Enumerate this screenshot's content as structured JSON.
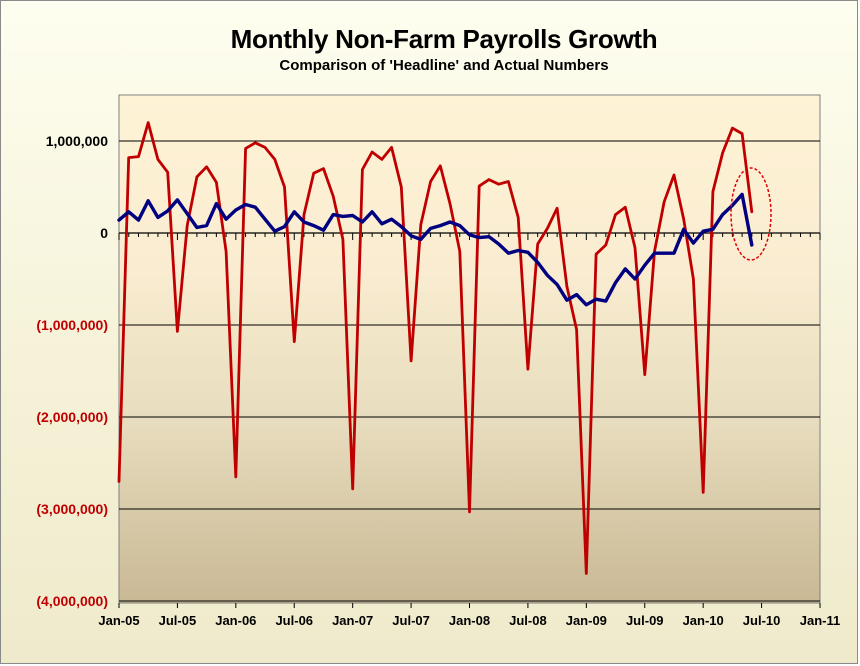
{
  "chart_data": {
    "type": "line",
    "title": "Monthly Non-Farm Payrolls Growth",
    "subtitle": "Comparison of 'Headline' and Actual Numbers",
    "x_tick_labels": [
      "Jan-05",
      "Jul-05",
      "Jan-06",
      "Jul-06",
      "Jan-07",
      "Jul-07",
      "Jan-08",
      "Jul-08",
      "Jan-09",
      "Jul-09",
      "Jan-10",
      "Jul-10",
      "Jan-11"
    ],
    "y_tick_labels": [
      "1,000,000",
      "0",
      "(1,000,000)",
      "(2,000,000)",
      "(3,000,000)",
      "(4,000,000)"
    ],
    "y_tick_values": [
      1000000,
      0,
      -1000000,
      -2000000,
      -3000000,
      -4000000
    ],
    "y_tick_colors": [
      "#000000",
      "#000000",
      "#c00000",
      "#c00000",
      "#c00000",
      "#c00000"
    ],
    "ylim": [
      -4000000,
      1500000
    ],
    "x_range_months": 72,
    "grid": "horizontal",
    "legend": "none",
    "series": [
      {
        "color": "#c00000",
        "values": [
          -2700000,
          820000,
          830000,
          1200000,
          800000,
          660000,
          -1070000,
          80000,
          610000,
          720000,
          550000,
          -200000,
          -2650000,
          920000,
          980000,
          930000,
          800000,
          500000,
          -1180000,
          200000,
          650000,
          700000,
          400000,
          -70000,
          -2780000,
          690000,
          880000,
          800000,
          930000,
          500000,
          -1390000,
          90000,
          560000,
          730000,
          320000,
          -200000,
          -3030000,
          510000,
          580000,
          530000,
          560000,
          170000,
          -1480000,
          -120000,
          50000,
          270000,
          -580000,
          -1050000,
          -3700000,
          -230000,
          -130000,
          200000,
          280000,
          -160000,
          -1540000,
          -200000,
          340000,
          630000,
          150000,
          -500000,
          -2820000,
          450000,
          870000,
          1140000,
          1080000,
          230000
        ]
      },
      {
        "color": "#000080",
        "values": [
          140000,
          230000,
          140000,
          350000,
          170000,
          240000,
          360000,
          210000,
          60000,
          80000,
          320000,
          150000,
          250000,
          310000,
          280000,
          150000,
          20000,
          70000,
          230000,
          120000,
          80000,
          30000,
          200000,
          180000,
          190000,
          120000,
          230000,
          100000,
          150000,
          70000,
          -30000,
          -70000,
          50000,
          80000,
          120000,
          80000,
          -20000,
          -50000,
          -40000,
          -120000,
          -220000,
          -190000,
          -210000,
          -320000,
          -460000,
          -560000,
          -730000,
          -670000,
          -780000,
          -720000,
          -740000,
          -540000,
          -390000,
          -500000,
          -350000,
          -220000,
          -220000,
          -220000,
          40000,
          -110000,
          20000,
          40000,
          200000,
          300000,
          420000,
          -130000
        ]
      }
    ],
    "annotation": "red ellipse around most recent data points"
  }
}
